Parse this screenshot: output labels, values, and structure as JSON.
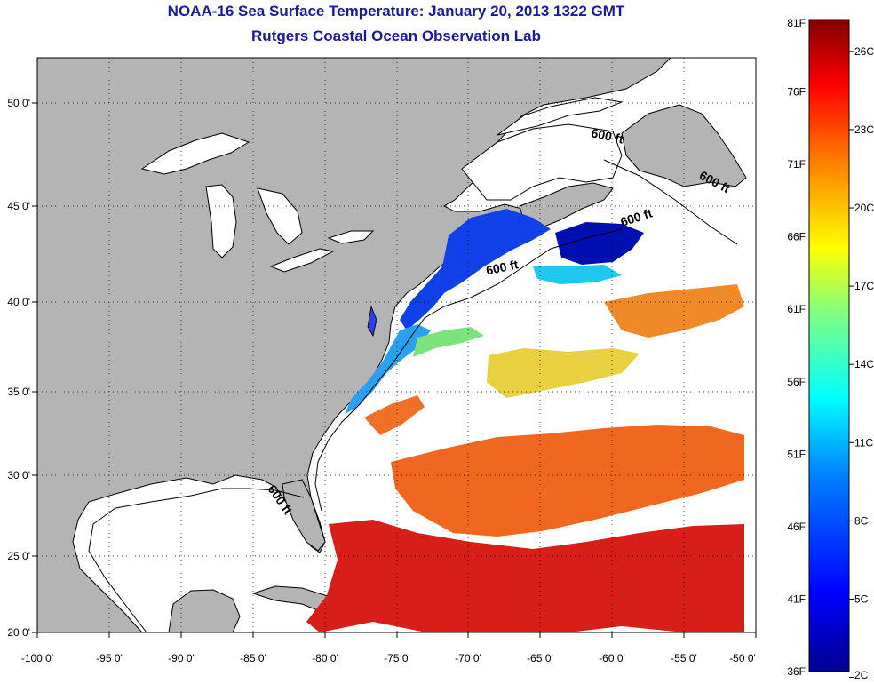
{
  "title": "NOAA-16 Sea Surface Temperature:  January 20, 2013 1322 GMT",
  "subtitle": "Rutgers Coastal Ocean Observation Lab",
  "map": {
    "lon_range": [
      -100,
      -50
    ],
    "lat_range": [
      20,
      52
    ],
    "x_ticks": [
      "-100 0'",
      "-95 0'",
      "-90 0'",
      "-85 0'",
      "-80 0'",
      "-75 0'",
      "-70 0'",
      "-65 0'",
      "-60 0'",
      "-55 0'",
      "-50 0'"
    ],
    "y_ticks": [
      "50 0'",
      "45 0'",
      "40 0'",
      "35 0'",
      "30 0'",
      "25 0'",
      "20 0'"
    ],
    "y_tick_values": [
      50,
      45,
      40,
      35,
      30,
      25,
      20
    ],
    "x_tick_values": [
      -100,
      -95,
      -90,
      -85,
      -80,
      -75,
      -70,
      -65,
      -60,
      -55,
      -50
    ],
    "land_color": "#b4b4b4",
    "isobath_labels": [
      {
        "text": "600 ft",
        "lon": -61.5,
        "lat": 47.6,
        "rotate": 12
      },
      {
        "text": "600 ft",
        "lon": -54.0,
        "lat": 45.3,
        "rotate": 28
      },
      {
        "text": "600 ft",
        "lon": -59.3,
        "lat": 42.6,
        "rotate": -18
      },
      {
        "text": "600 ft",
        "lon": -68.7,
        "lat": 39.9,
        "rotate": -12
      },
      {
        "text": "600 ft",
        "lon": -84.0,
        "lat": 28.0,
        "rotate": 55
      }
    ]
  },
  "colorbar": {
    "labels_f": [
      "81F",
      "76F",
      "71F",
      "66F",
      "61F",
      "56F",
      "51F",
      "46F",
      "41F",
      "36F"
    ],
    "values_f": [
      81,
      76,
      71,
      66,
      61,
      56,
      51,
      46,
      41,
      36
    ],
    "labels_c": [
      "26C",
      "23C",
      "20C",
      "17C",
      "14C",
      "11C",
      "8C",
      "5C",
      "2C"
    ],
    "values_c": [
      26,
      23,
      20,
      17,
      14,
      11,
      8,
      5,
      2
    ],
    "colors": [
      "#00008f",
      "#0000ff",
      "#0080ff",
      "#00ffff",
      "#80ff80",
      "#ffff00",
      "#ff8000",
      "#ff0000",
      "#800000"
    ]
  }
}
